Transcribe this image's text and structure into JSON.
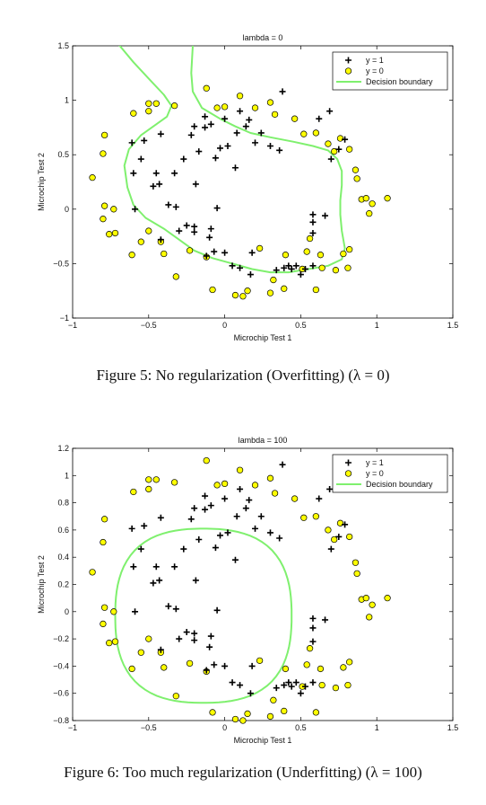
{
  "chart_data": [
    {
      "type": "scatter",
      "title": "lambda = 0",
      "xlabel": "Microchip Test 1",
      "ylabel": "Microchip Test 2",
      "xlim": [
        -1,
        1.5
      ],
      "ylim": [
        -1,
        1.5
      ],
      "xticks": [
        -1,
        -0.5,
        0,
        0.5,
        1,
        1.5
      ],
      "yticks": [
        -1,
        -0.5,
        0,
        0.5,
        1,
        1.5
      ],
      "xtick_labels": [
        "−1",
        "−0.5",
        "0",
        "0.5",
        "1",
        "1.5"
      ],
      "ytick_labels": [
        "−1",
        "−0.5",
        "0",
        "0.5",
        "1",
        "1.5"
      ],
      "legend_position": "top-right",
      "caption": "Figure 5: No regularization (Overfitting) (λ = 0)",
      "series": [
        {
          "name": "y = 1",
          "marker": "plus",
          "color": "#000000",
          "points": [
            [
              -0.61,
              0.61
            ],
            [
              -0.53,
              0.63
            ],
            [
              -0.42,
              0.69
            ],
            [
              -0.22,
              0.68
            ],
            [
              -0.2,
              0.76
            ],
            [
              -0.13,
              0.75
            ],
            [
              -0.13,
              0.85
            ],
            [
              -0.09,
              0.78
            ],
            [
              0.0,
              0.83
            ],
            [
              0.08,
              0.7
            ],
            [
              0.1,
              0.9
            ],
            [
              0.14,
              0.76
            ],
            [
              0.2,
              0.61
            ],
            [
              0.3,
              0.58
            ],
            [
              0.36,
              0.54
            ],
            [
              0.24,
              0.7
            ],
            [
              0.02,
              0.58
            ],
            [
              -0.03,
              0.56
            ],
            [
              -0.06,
              0.47
            ],
            [
              0.07,
              0.38
            ],
            [
              -0.17,
              0.53
            ],
            [
              -0.27,
              0.46
            ],
            [
              -0.33,
              0.33
            ],
            [
              -0.45,
              0.33
            ],
            [
              -0.55,
              0.46
            ],
            [
              -0.6,
              0.33
            ],
            [
              -0.47,
              0.21
            ],
            [
              -0.59,
              0.0
            ],
            [
              -0.43,
              0.23
            ],
            [
              -0.37,
              0.04
            ],
            [
              -0.32,
              0.02
            ],
            [
              -0.25,
              -0.15
            ],
            [
              -0.2,
              -0.21
            ],
            [
              -0.3,
              -0.2
            ],
            [
              -0.2,
              -0.16
            ],
            [
              -0.19,
              0.23
            ],
            [
              -0.05,
              0.01
            ],
            [
              -0.09,
              -0.18
            ],
            [
              -0.1,
              -0.26
            ],
            [
              -0.07,
              -0.39
            ],
            [
              -0.12,
              -0.43
            ],
            [
              0.0,
              -0.4
            ],
            [
              0.05,
              -0.52
            ],
            [
              0.1,
              -0.54
            ],
            [
              0.17,
              -0.6
            ],
            [
              0.18,
              -0.4
            ],
            [
              0.34,
              -0.56
            ],
            [
              0.39,
              -0.54
            ],
            [
              0.42,
              -0.52
            ],
            [
              0.44,
              -0.55
            ],
            [
              0.47,
              -0.52
            ],
            [
              0.58,
              -0.52
            ],
            [
              0.58,
              -0.22
            ],
            [
              0.58,
              -0.12
            ],
            [
              0.58,
              -0.05
            ],
            [
              0.66,
              -0.06
            ],
            [
              0.53,
              -0.55
            ],
            [
              0.5,
              -0.6
            ],
            [
              0.7,
              0.46
            ],
            [
              0.75,
              0.55
            ],
            [
              0.79,
              0.64
            ],
            [
              0.62,
              0.83
            ],
            [
              0.69,
              0.9
            ],
            [
              0.38,
              1.08
            ],
            [
              0.16,
              0.82
            ],
            [
              -0.42,
              -0.28
            ]
          ]
        },
        {
          "name": "y = 0",
          "marker": "circle",
          "color": "#ffff00",
          "points": [
            [
              -0.6,
              0.88
            ],
            [
              -0.79,
              0.68
            ],
            [
              -0.8,
              0.51
            ],
            [
              -0.87,
              0.29
            ],
            [
              -0.8,
              -0.09
            ],
            [
              -0.79,
              0.03
            ],
            [
              -0.76,
              -0.23
            ],
            [
              -0.72,
              -0.22
            ],
            [
              -0.73,
              0.0
            ],
            [
              -0.61,
              -0.42
            ],
            [
              -0.55,
              -0.3
            ],
            [
              -0.5,
              -0.2
            ],
            [
              -0.42,
              -0.3
            ],
            [
              -0.4,
              -0.41
            ],
            [
              -0.32,
              -0.62
            ],
            [
              -0.23,
              -0.38
            ],
            [
              -0.12,
              -0.44
            ],
            [
              -0.08,
              -0.74
            ],
            [
              -0.5,
              0.97
            ],
            [
              -0.45,
              0.97
            ],
            [
              -0.5,
              0.9
            ],
            [
              -0.33,
              0.95
            ],
            [
              -0.12,
              1.11
            ],
            [
              -0.05,
              0.93
            ],
            [
              0.0,
              0.94
            ],
            [
              0.1,
              1.04
            ],
            [
              0.2,
              0.93
            ],
            [
              0.3,
              0.98
            ],
            [
              0.33,
              0.87
            ],
            [
              0.46,
              0.83
            ],
            [
              0.52,
              0.69
            ],
            [
              0.6,
              0.7
            ],
            [
              0.68,
              0.6
            ],
            [
              0.72,
              0.53
            ],
            [
              0.76,
              0.65
            ],
            [
              0.82,
              0.55
            ],
            [
              0.87,
              0.28
            ],
            [
              0.86,
              0.36
            ],
            [
              0.9,
              0.09
            ],
            [
              0.93,
              0.1
            ],
            [
              0.95,
              -0.04
            ],
            [
              0.97,
              0.05
            ],
            [
              1.07,
              0.1
            ],
            [
              0.82,
              -0.37
            ],
            [
              0.81,
              -0.54
            ],
            [
              0.64,
              -0.54
            ],
            [
              0.6,
              -0.74
            ],
            [
              0.39,
              -0.73
            ],
            [
              0.3,
              -0.77
            ],
            [
              0.15,
              -0.75
            ],
            [
              0.07,
              -0.79
            ],
            [
              0.12,
              -0.8
            ],
            [
              0.23,
              -0.36
            ],
            [
              0.4,
              -0.42
            ],
            [
              0.54,
              -0.39
            ],
            [
              0.56,
              -0.27
            ],
            [
              0.51,
              -0.55
            ],
            [
              0.63,
              -0.42
            ],
            [
              0.78,
              -0.41
            ],
            [
              0.32,
              -0.65
            ],
            [
              0.73,
              -0.56
            ]
          ]
        }
      ]
    },
    {
      "type": "scatter",
      "title": "lambda = 100",
      "xlabel": "Microchip Test 1",
      "ylabel": "Microchip Test 2",
      "xlim": [
        -1,
        1.5
      ],
      "ylim": [
        -0.8,
        1.2
      ],
      "xticks": [
        -1,
        -0.5,
        0,
        0.5,
        1,
        1.5
      ],
      "yticks": [
        -0.8,
        -0.6,
        -0.4,
        -0.2,
        0,
        0.2,
        0.4,
        0.6,
        0.8,
        1,
        1.2
      ],
      "xtick_labels": [
        "−1",
        "−0.5",
        "0",
        "0.5",
        "1",
        "1.5"
      ],
      "ytick_labels": [
        "−0.8",
        "−0.6",
        "−0.4",
        "−0.2",
        "0",
        "0.2",
        "0.4",
        "0.6",
        "0.8",
        "1",
        "1.2"
      ],
      "legend_position": "top-right",
      "caption": "Figure 6: Too much regularization (Underfitting) (λ = 100)",
      "legend": [
        "y = 1",
        "y = 0",
        "Decision boundary"
      ]
    }
  ],
  "legend_labels": [
    "y = 1",
    "y = 0",
    "Decision boundary"
  ],
  "colors": {
    "positive": "#000000",
    "negative": "#ffff00",
    "boundary": "#7ff06e"
  }
}
